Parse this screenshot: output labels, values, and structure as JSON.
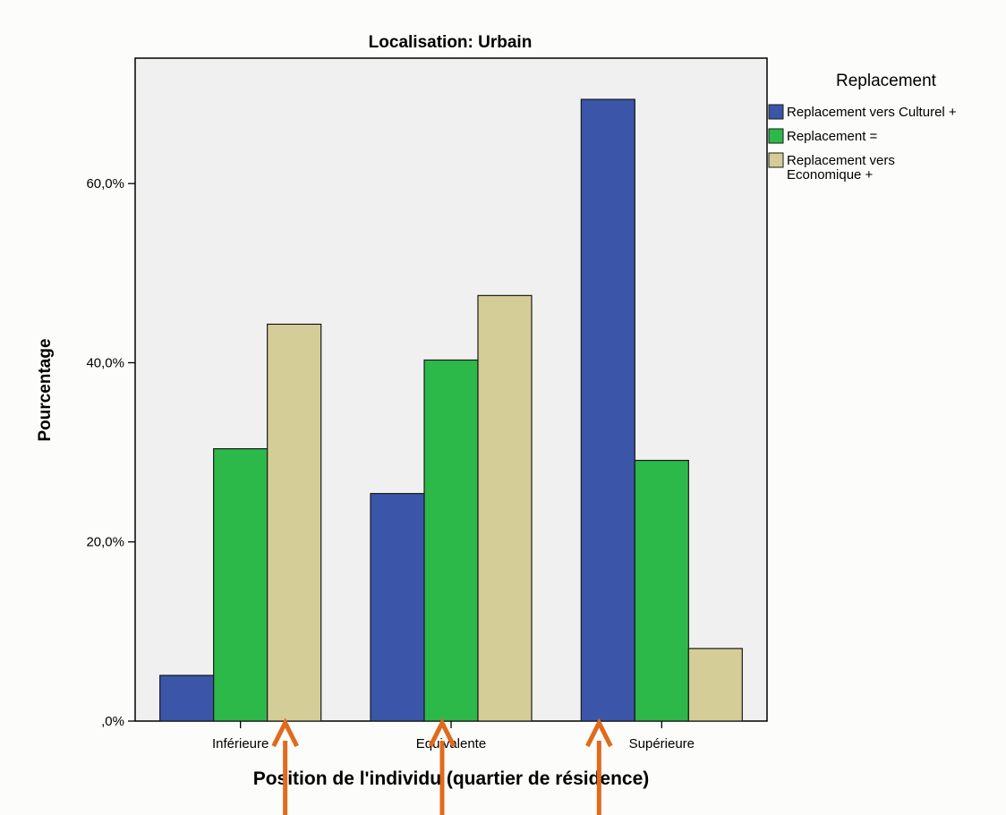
{
  "chart_data": {
    "type": "bar",
    "title": "Localisation: Urbain",
    "xlabel": "Position de l'individu (quartier de résidence)",
    "ylabel": "Pourcentage",
    "categories": [
      "Inférieure",
      "Equivalente",
      "Supérieure"
    ],
    "ylim": [
      0,
      0.74
    ],
    "yticks": [
      0,
      0.2,
      0.4,
      0.6
    ],
    "ytick_labels": [
      ",0%",
      "20,0%",
      "40,0%",
      "60,0%"
    ],
    "grid": false,
    "legend": {
      "title": "Replacement",
      "placement": "top-right outside"
    },
    "series": [
      {
        "name": "Replacement vers Culturel +",
        "name_lines": [
          "Replacement vers Culturel +"
        ],
        "color": "#3b55a9",
        "values": [
          0.051,
          0.254,
          0.694
        ]
      },
      {
        "name": "Replacement =",
        "name_lines": [
          "Replacement ="
        ],
        "color": "#2db84a",
        "values": [
          0.304,
          0.403,
          0.291
        ]
      },
      {
        "name": "Replacement vers Economique +",
        "name_lines": [
          "Replacement vers",
          "Economique +"
        ],
        "color": "#d4cd97",
        "values": [
          0.443,
          0.475,
          0.081
        ]
      }
    ]
  },
  "annotations": {
    "arrow_color": "#e06a1e",
    "arrows": [
      {
        "category": "Inférieure",
        "target_series": "Replacement vers Economique +"
      },
      {
        "category": "Equivalente",
        "target_series": "Replacement ="
      },
      {
        "category": "Supérieure",
        "target_series": "Replacement vers Culturel +"
      }
    ]
  },
  "colors": {
    "plot_background": "#f0f0f0",
    "axis": "#000000",
    "page_background": "#fcfcfa"
  }
}
